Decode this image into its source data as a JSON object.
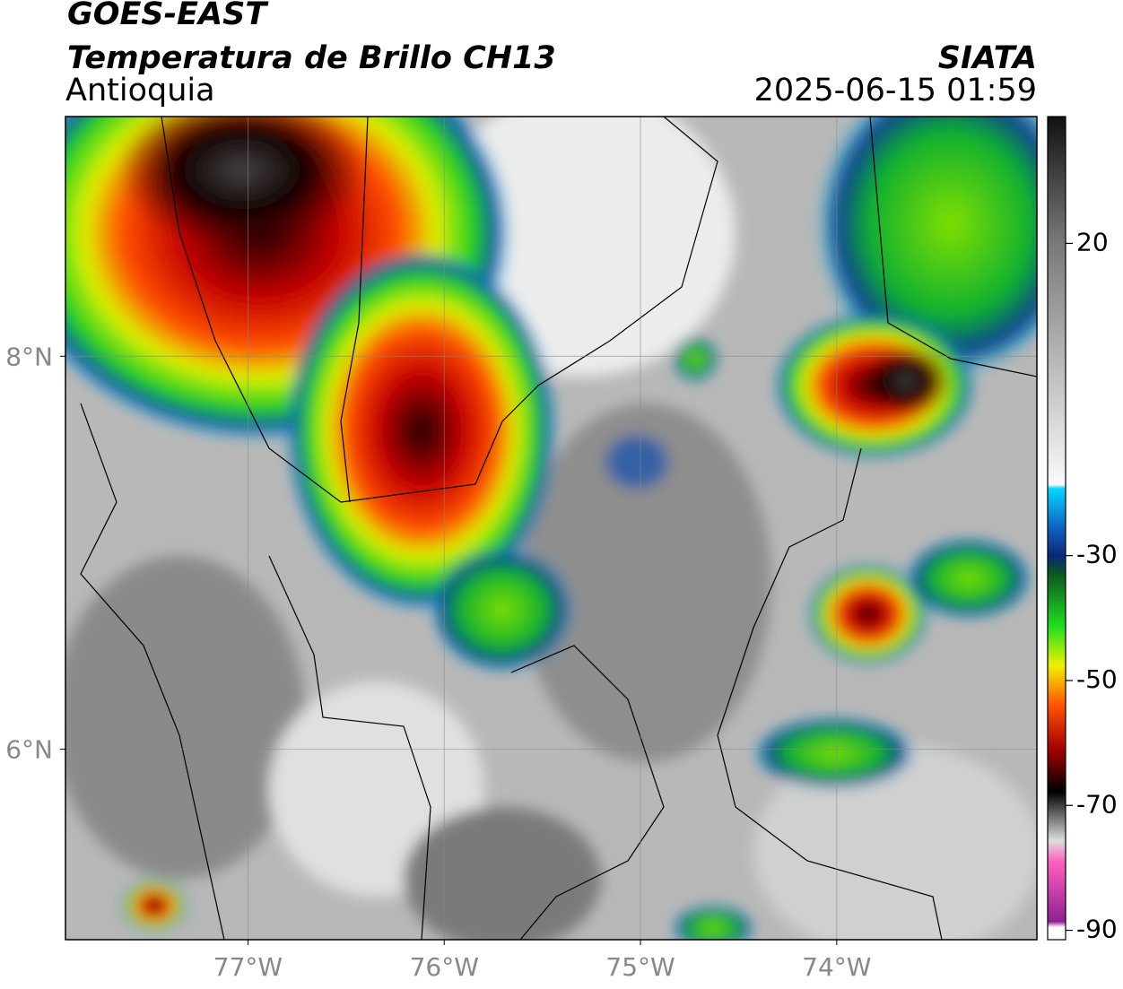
{
  "header": {
    "title": "GOES-EAST",
    "subtitle": "Temperatura de Brillo CH13",
    "region": "Antioquia",
    "source": "SIATA",
    "timestamp": "2025-06-15 01:59"
  },
  "map": {
    "lonlim": [
      -77.93,
      -72.98
    ],
    "latlim": [
      5.03,
      9.22
    ],
    "lon_ticks": [
      {
        "value": -77,
        "label": "77°W"
      },
      {
        "value": -76,
        "label": "76°W"
      },
      {
        "value": -75,
        "label": "75°W"
      },
      {
        "value": -74,
        "label": "74°W"
      }
    ],
    "lat_ticks": [
      {
        "value": 8,
        "label": "8°N"
      },
      {
        "value": 6,
        "label": "6°N"
      }
    ]
  },
  "colorbar": {
    "clim": [
      -91.5,
      40.3
    ],
    "ticks": [
      20,
      -30,
      -50,
      -70,
      -90
    ]
  }
}
